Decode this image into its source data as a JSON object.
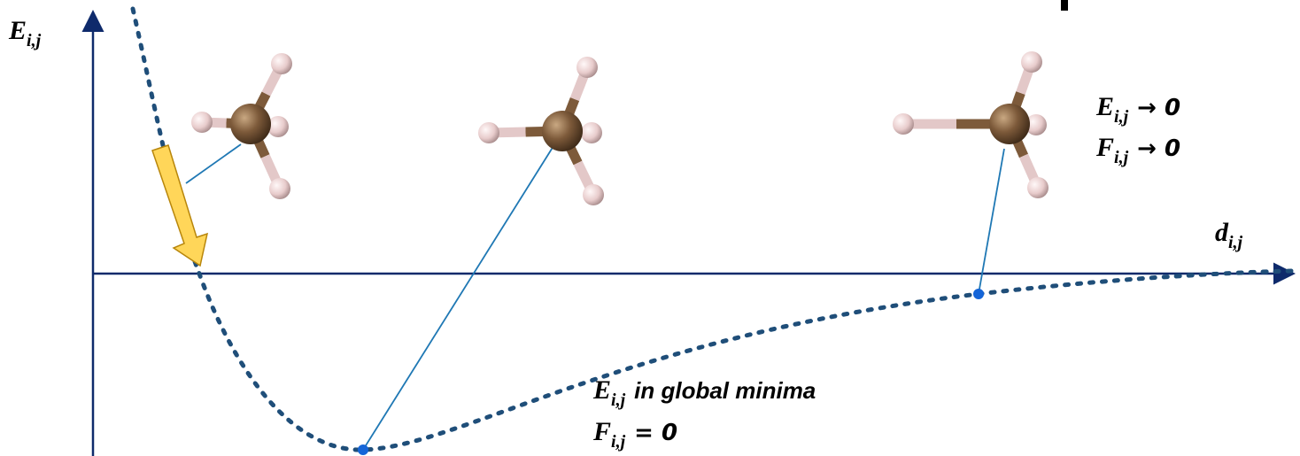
{
  "axes": {
    "y_label": {
      "symbol": "E",
      "subscript": "i,j"
    },
    "x_label": {
      "symbol": "d",
      "subscript": "i,j"
    }
  },
  "annotations": [
    {
      "symbol": "E",
      "subscript": "i,j",
      "text": "→ 0"
    },
    {
      "symbol": "F",
      "subscript": "i,j",
      "text": "→ 0"
    },
    {
      "symbol": "E",
      "subscript": "i,j",
      "text": "in global minima"
    },
    {
      "symbol": "F",
      "subscript": "i,j",
      "text": "= 0"
    }
  ]
}
